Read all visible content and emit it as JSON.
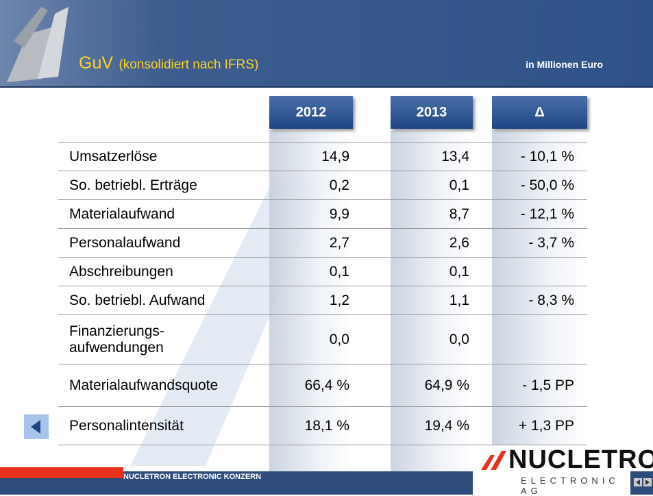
{
  "header": {
    "title": "GuV",
    "subtitle": "(konsolidiert nach IFRS)",
    "unit": "in Millionen Euro"
  },
  "table": {
    "columns": [
      "2012",
      "2013",
      "Δ"
    ],
    "rows": [
      {
        "label": "Umsatzerlöse",
        "v2012": "14,9",
        "v2013": "13,4",
        "delta": "- 10,1 %"
      },
      {
        "label": "So. betriebl. Erträge",
        "v2012": "0,2",
        "v2013": "0,1",
        "delta": "- 50,0 %"
      },
      {
        "label": "Materialaufwand",
        "v2012": "9,9",
        "v2013": "8,7",
        "delta": "- 12,1 %"
      },
      {
        "label": "Personalaufwand",
        "v2012": "2,7",
        "v2013": "2,6",
        "delta": "- 3,7 %"
      },
      {
        "label": "Abschreibungen",
        "v2012": "0,1",
        "v2013": "0,1"
      },
      {
        "label": "So. betriebl. Aufwand",
        "v2012": "1,2",
        "v2013": "1,1",
        "delta": "- 8,3 %"
      },
      {
        "label": "Finanzierungs-\naufwendungen",
        "v2012": "0,0",
        "v2013": "0,0"
      },
      {
        "label": "Materialaufwandsquote",
        "v2012": "66,4 %",
        "v2013": "64,9 %",
        "delta": "- 1,5 PP"
      },
      {
        "label": "Personalintensität",
        "v2012": "18,1 %",
        "v2013": "19,4 %",
        "delta": "+ 1,3 PP"
      }
    ]
  },
  "footer": {
    "company": "NUCLETRON ELECTRONIC KONZERN",
    "logo": "NUCLETRON",
    "logo_sub": "ELECTRONIC AG"
  }
}
